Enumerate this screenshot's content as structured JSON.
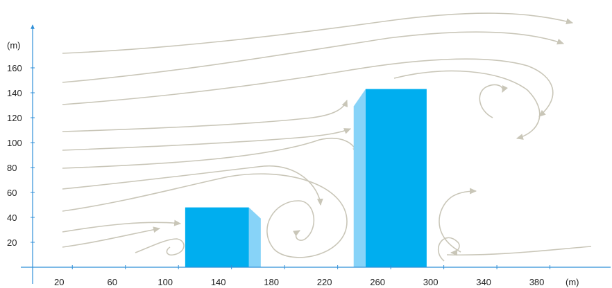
{
  "colors": {
    "axis": "#2f8fd8",
    "building_front": "#00aeef",
    "building_side": "#87d3f8",
    "wind_stream": "#c9c6b8"
  },
  "axes": {
    "x_unit": "(m)",
    "y_unit": "(m)",
    "x_ticks": [
      20,
      60,
      100,
      140,
      180,
      220,
      260,
      300,
      340,
      380
    ],
    "y_ticks": [
      20,
      40,
      60,
      80,
      100,
      120,
      140,
      160
    ]
  },
  "buildings": [
    {
      "name": "low-building",
      "x_start": 115,
      "x_end": 163,
      "height": 48,
      "side_depth": 9,
      "side_on": "right"
    },
    {
      "name": "tall-building",
      "x_start": 251,
      "x_end": 297,
      "height": 143,
      "side_depth": 9,
      "side_on": "left"
    }
  ],
  "wind": {
    "description_icon": "wind-streamline-arrows"
  }
}
